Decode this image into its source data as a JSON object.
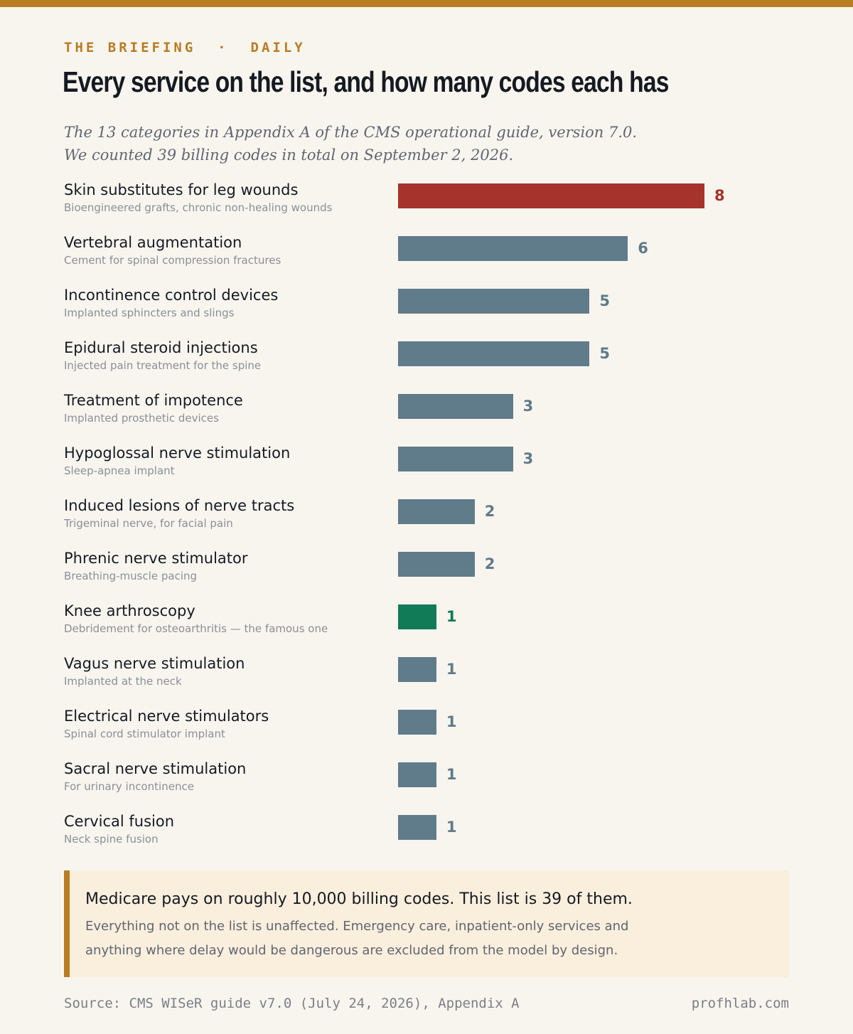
{
  "kicker": {
    "brand": "THE BRIEFING",
    "separator": "·",
    "section": "DAILY"
  },
  "title": "Every service on the list, and how many codes each has",
  "subtitle": {
    "line1": "The 13 categories in Appendix A of the CMS operational guide, version 7.0.",
    "line2": "We counted 39 billing codes in total on September 2, 2026."
  },
  "colors": {
    "default_bar": "#607b8a",
    "highlight_max": "#a6332c",
    "highlight_famous": "#117a57",
    "accent": "#b87c22"
  },
  "chart_data": {
    "type": "bar",
    "orientation": "horizontal",
    "title": "",
    "xlabel": "",
    "ylabel": "",
    "xlim": [
      0,
      8
    ],
    "grid": false,
    "categories": [
      "Skin substitutes for leg wounds",
      "Vertebral augmentation",
      "Incontinence control devices",
      "Epidural steroid injections",
      "Treatment of impotence",
      "Hypoglossal nerve stimulation",
      "Induced lesions of nerve tracts",
      "Phrenic nerve stimulator",
      "Knee arthroscopy",
      "Vagus nerve stimulation",
      "Electrical nerve stimulators",
      "Sacral nerve stimulation",
      "Cervical fusion"
    ],
    "descriptions": [
      "Bioengineered grafts, chronic non-healing wounds",
      "Cement for spinal compression fractures",
      "Implanted sphincters and slings",
      "Injected pain treatment for the spine",
      "Implanted prosthetic devices",
      "Sleep-apnea implant",
      "Trigeminal nerve, for facial pain",
      "Breathing-muscle pacing",
      "Debridement for osteoarthritis — the famous one",
      "Implanted at the neck",
      "Spinal cord stimulator implant",
      "For urinary incontinence",
      "Neck spine fusion"
    ],
    "values": [
      8,
      6,
      5,
      5,
      3,
      3,
      2,
      2,
      1,
      1,
      1,
      1,
      1
    ],
    "bar_colors": [
      "#a6332c",
      "#607b8a",
      "#607b8a",
      "#607b8a",
      "#607b8a",
      "#607b8a",
      "#607b8a",
      "#607b8a",
      "#117a57",
      "#607b8a",
      "#607b8a",
      "#607b8a",
      "#607b8a"
    ]
  },
  "callout": {
    "headline": "Medicare pays on roughly 10,000 billing codes. This list is 39 of them.",
    "body": "Everything not on the list is unaffected. Emergency care, inpatient-only services and anything where delay would be dangerous are excluded from the model by design."
  },
  "footer": {
    "source": "Source: CMS WISeR guide v7.0 (July 24, 2026), Appendix A",
    "site": "profhlab.com"
  }
}
